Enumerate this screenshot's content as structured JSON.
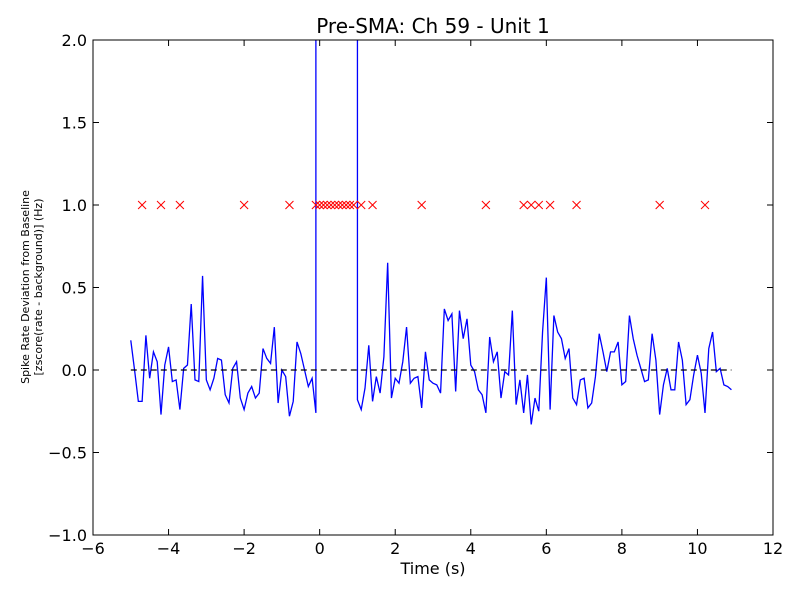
{
  "chart_data": {
    "type": "line",
    "title": "Pre-SMA: Ch 59 - Unit 1",
    "xlabel": "Time (s)",
    "ylabel_line1": "Spike Rate Deviation from Baseline",
    "ylabel_line2": "[zscore(rate - background)] (Hz)",
    "xlim": [
      -6,
      12
    ],
    "ylim": [
      -1.0,
      2.0
    ],
    "xticks": [
      -6,
      -4,
      -2,
      0,
      2,
      4,
      6,
      8,
      10,
      12
    ],
    "xtick_labels": [
      "−6",
      "−4",
      "−2",
      "0",
      "2",
      "4",
      "6",
      "8",
      "10",
      "12"
    ],
    "yticks": [
      -1.0,
      -0.5,
      0.0,
      0.5,
      1.0,
      1.5,
      2.0
    ],
    "ytick_labels": [
      "−1.0",
      "−0.5",
      "0.0",
      "0.5",
      "1.0",
      "1.5",
      "2.0"
    ],
    "grid": false,
    "series": [
      {
        "kind": "line",
        "color": "#0000ff",
        "x": [
          -5.0,
          -4.9,
          -4.8,
          -4.7,
          -4.6,
          -4.5,
          -4.4,
          -4.3,
          -4.2,
          -4.1,
          -4.0,
          -3.9,
          -3.8,
          -3.7,
          -3.6,
          -3.5,
          -3.4,
          -3.3,
          -3.2,
          -3.1,
          -3.0,
          -2.9,
          -2.8,
          -2.7,
          -2.6,
          -2.5,
          -2.4,
          -2.3,
          -2.2,
          -2.1,
          -2.0,
          -1.9,
          -1.8,
          -1.7,
          -1.6,
          -1.5,
          -1.4,
          -1.3,
          -1.2,
          -1.1,
          -1.0,
          -0.9,
          -0.8,
          -0.7,
          -0.6,
          -0.5,
          -0.4,
          -0.3,
          -0.2,
          -0.1,
          -0.1,
          -0.1,
          1.0,
          1.0,
          1.0,
          1.1,
          1.2,
          1.3,
          1.4,
          1.5,
          1.6,
          1.7,
          1.8,
          1.9,
          2.0,
          2.1,
          2.2,
          2.3,
          2.4,
          2.5,
          2.6,
          2.7,
          2.8,
          2.9,
          3.0,
          3.1,
          3.2,
          3.3,
          3.4,
          3.5,
          3.6,
          3.7,
          3.8,
          3.9,
          4.0,
          4.1,
          4.2,
          4.3,
          4.4,
          4.5,
          4.6,
          4.7,
          4.8,
          4.9,
          5.0,
          5.1,
          5.2,
          5.3,
          5.4,
          5.5,
          5.6,
          5.7,
          5.8,
          5.9,
          6.0,
          6.1,
          6.2,
          6.3,
          6.4,
          6.5,
          6.6,
          6.7,
          6.8,
          6.9,
          7.0,
          7.1,
          7.2,
          7.3,
          7.4,
          7.5,
          7.6,
          7.7,
          7.8,
          7.9,
          8.0,
          8.1,
          8.2,
          8.3,
          8.4,
          8.5,
          8.6,
          8.7,
          8.8,
          8.9,
          9.0,
          9.1,
          9.2,
          9.3,
          9.4,
          9.5,
          9.6,
          9.7,
          9.8,
          9.9,
          10.0,
          10.1,
          10.2,
          10.3,
          10.4,
          10.5,
          10.6,
          10.7,
          10.8,
          10.9
        ],
        "y": [
          0.18,
          0.0,
          -0.19,
          -0.19,
          0.21,
          -0.05,
          0.11,
          0.05,
          -0.27,
          0.03,
          0.14,
          -0.07,
          -0.06,
          -0.24,
          0.01,
          0.03,
          0.4,
          -0.06,
          -0.07,
          0.57,
          -0.06,
          -0.12,
          -0.05,
          0.07,
          0.06,
          -0.15,
          -0.2,
          0.01,
          0.05,
          -0.17,
          -0.24,
          -0.14,
          -0.1,
          -0.17,
          -0.14,
          0.13,
          0.07,
          0.04,
          0.26,
          -0.2,
          0.0,
          -0.04,
          -0.28,
          -0.19,
          0.17,
          0.1,
          0.0,
          -0.1,
          -0.05,
          -0.26,
          2.1,
          2.1,
          2.1,
          2.1,
          -0.18,
          -0.24,
          -0.11,
          0.15,
          -0.19,
          -0.04,
          -0.14,
          0.08,
          0.65,
          -0.17,
          -0.05,
          -0.08,
          0.05,
          0.26,
          -0.08,
          -0.05,
          -0.04,
          -0.23,
          0.11,
          -0.06,
          -0.08,
          -0.09,
          -0.14,
          0.37,
          0.3,
          0.34,
          -0.13,
          0.36,
          0.19,
          0.31,
          0.03,
          -0.01,
          -0.12,
          -0.15,
          -0.26,
          0.2,
          0.05,
          0.11,
          -0.17,
          -0.01,
          -0.03,
          0.36,
          -0.21,
          -0.06,
          -0.26,
          -0.03,
          -0.33,
          -0.17,
          -0.25,
          0.23,
          0.56,
          -0.24,
          0.33,
          0.23,
          0.19,
          0.07,
          0.13,
          -0.17,
          -0.21,
          -0.06,
          -0.05,
          -0.23,
          -0.2,
          -0.04,
          0.22,
          0.11,
          -0.01,
          0.11,
          0.11,
          0.17,
          -0.09,
          -0.07,
          0.33,
          0.19,
          0.09,
          0.01,
          -0.07,
          -0.06,
          0.22,
          0.06,
          -0.27,
          -0.09,
          0.01,
          -0.12,
          -0.12,
          0.17,
          0.06,
          -0.21,
          -0.18,
          -0.03,
          0.09,
          -0.02,
          -0.26,
          0.13,
          0.23,
          -0.01,
          0.01,
          -0.09,
          -0.1,
          -0.12
        ]
      },
      {
        "kind": "dashed-line",
        "color": "#000000",
        "x": [
          -5.0,
          10.9
        ],
        "y": [
          0.0,
          0.0
        ]
      },
      {
        "kind": "markers",
        "marker": "x",
        "color": "#ff0000",
        "x": [
          -4.7,
          -4.2,
          -3.7,
          -2.0,
          -0.8,
          -0.1,
          0.0,
          0.1,
          0.2,
          0.3,
          0.4,
          0.5,
          0.6,
          0.7,
          0.8,
          0.9,
          1.1,
          1.4,
          2.7,
          4.4,
          5.4,
          5.6,
          5.8,
          6.1,
          6.8,
          9.0,
          10.2
        ],
        "y": [
          1.0,
          1.0,
          1.0,
          1.0,
          1.0,
          1.0,
          1.0,
          1.0,
          1.0,
          1.0,
          1.0,
          1.0,
          1.0,
          1.0,
          1.0,
          1.0,
          1.0,
          1.0,
          1.0,
          1.0,
          1.0,
          1.0,
          1.0,
          1.0,
          1.0,
          1.0,
          1.0
        ]
      }
    ]
  }
}
